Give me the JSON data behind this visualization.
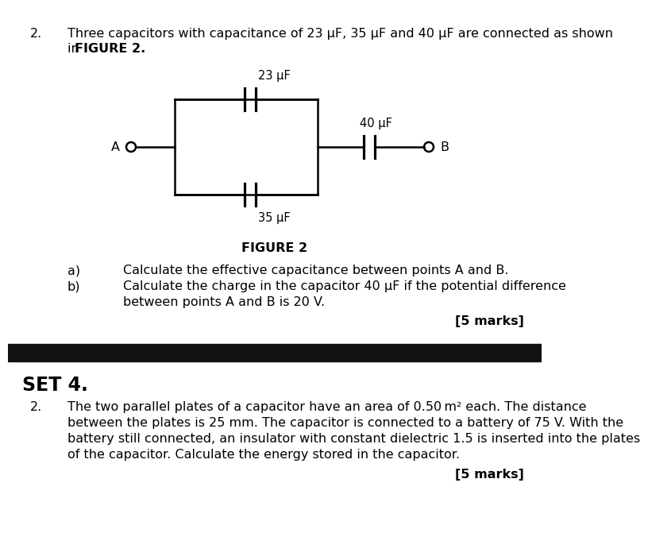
{
  "bg_color": "#ffffff",
  "dark_bar_color": "#111111",
  "text_color": "#000000",
  "question_num_top": "2.",
  "question_text_top": "Three capacitors with capacitance of 23 μF, 35 μF and 40 μF are connected as shown",
  "question_text_top2a": "in ",
  "question_text_top2b": "FIGURE 2.",
  "figure_label": "FIGURE 2",
  "label_a": "a)",
  "label_b": "b)",
  "answer_a": "Calculate the effective capacitance between points A and B.",
  "answer_b": "Calculate the charge in the capacitor 40 μF if the potential difference",
  "answer_b2": "between points A and B is 20 V.",
  "marks_top": "[5 marks]",
  "set_label": "SET 4.",
  "question_num_bot": "2.",
  "question_bot1": "The two parallel plates of a capacitor have an area of 0.50 m² each. The distance",
  "question_bot2": "between the plates is 25 mm. The capacitor is connected to a battery of 75 V. With the",
  "question_bot3": "battery still connected, an insulator with constant dielectric 1.5 is inserted into the plates",
  "question_bot4": "of the capacitor. Calculate the energy stored in the capacitor.",
  "marks_bot": "[5 marks]",
  "cap23_label": "23 μF",
  "cap35_label": "35 μF",
  "cap40_label": "40 μF",
  "node_A_label": "A",
  "node_B_label": "B",
  "font_size_main": 11.5,
  "font_size_set": 17
}
